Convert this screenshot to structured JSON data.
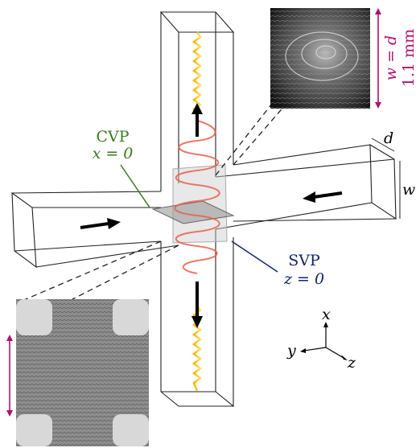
{
  "labels": {
    "inset_top_dim": "w = d",
    "inset_top_scale": "1.1 mm",
    "depth": "d",
    "width": "w",
    "cvp": {
      "name": "CVP",
      "plane": "x = 0"
    },
    "svp": {
      "name": "SVP",
      "plane": "z = 0"
    },
    "axes": {
      "x": "x",
      "y": "y",
      "z": "z"
    }
  }
}
